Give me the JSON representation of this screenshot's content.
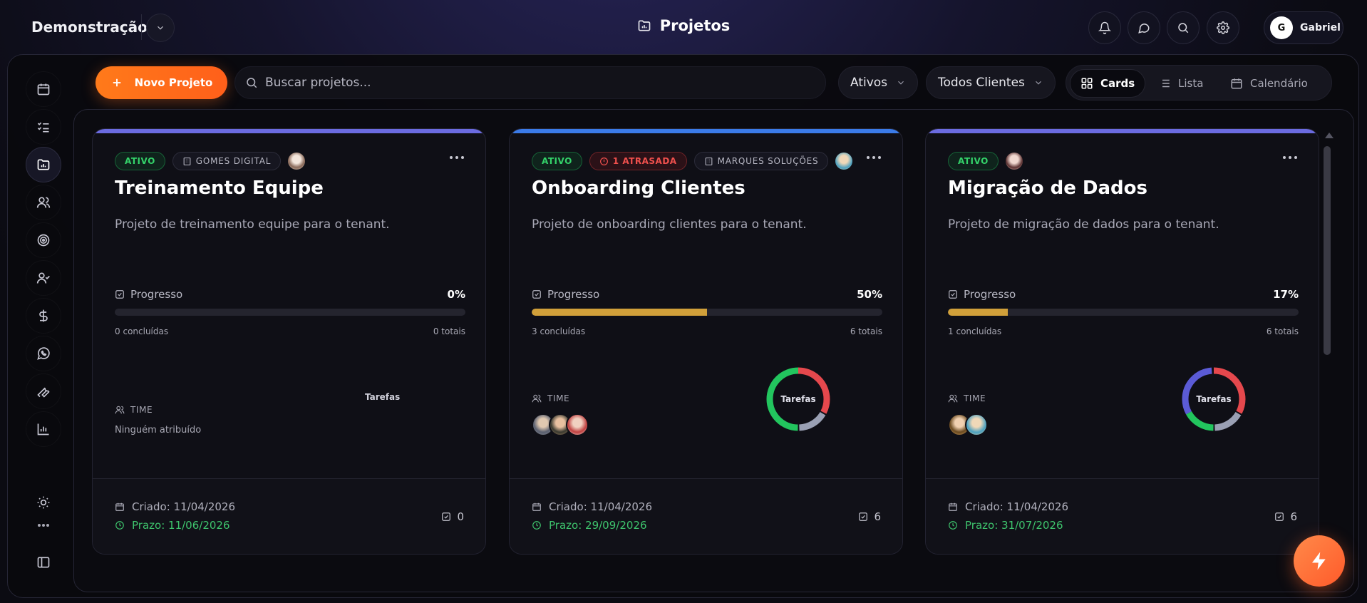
{
  "header": {
    "workspace": "Demonstração",
    "page_title": "Projetos",
    "user_initial": "G",
    "user_name": "Gabriel"
  },
  "toolbar": {
    "new_project_label": "Novo Projeto",
    "search_placeholder": "Buscar projetos...",
    "status_filter": "Ativos",
    "client_filter": "Todos Clientes",
    "views": [
      "Cards",
      "Lista",
      "Calendário"
    ],
    "active_view": "Cards"
  },
  "sidebar": {
    "icons": [
      "calendar-icon",
      "tasks-icon",
      "projects-icon",
      "users-icon",
      "target-icon",
      "user-check-icon",
      "dollar-icon",
      "whatsapp-icon",
      "wrench-icon",
      "chart-icon",
      "sun-icon",
      "more-icon",
      "panel-icon"
    ],
    "active": "projects-icon"
  },
  "colors": {
    "accent": "#ff6a1a",
    "progress_fill": "#d1a03a",
    "status_green": "#34d36a",
    "status_red": "#f0504d",
    "donut_red": "#e5484d",
    "donut_gray": "#9aa0b4",
    "donut_green": "#22c55e",
    "donut_blue": "#5b5bd6"
  },
  "labels": {
    "progress": "Progresso",
    "completed_suffix": "concluídas",
    "total_suffix": "totais",
    "team": "TIME",
    "tasks_chart": "Tarefas",
    "created_prefix": "Criado:",
    "due_prefix": "Prazo:"
  },
  "projects": [
    {
      "status": "ATIVO",
      "overdue": "",
      "client": "GOMES DIGITAL",
      "title": "Treinamento Equipe",
      "description": "Projeto de treinamento equipe para o tenant.",
      "progress_pct": "0%",
      "progress": 0,
      "completed": "0",
      "total": "0",
      "team_empty": "Ninguém atribuído",
      "created": "11/04/2026",
      "due": "11/06/2026",
      "task_count": "0"
    },
    {
      "status": "ATIVO",
      "overdue": "1 ATRASADA",
      "client": "MARQUES SOLUÇÕES",
      "title": "Onboarding Clientes",
      "description": "Projeto de onboarding clientes para o tenant.",
      "progress_pct": "50%",
      "progress": 0.5,
      "completed": "3",
      "total": "6",
      "team_members": 3,
      "created": "11/04/2026",
      "due": "29/09/2026",
      "task_count": "6"
    },
    {
      "status": "ATIVO",
      "overdue": "",
      "client": "",
      "title": "Migração de Dados",
      "description": "Projeto de migração de dados para o tenant.",
      "progress_pct": "17%",
      "progress": 0.17,
      "completed": "1",
      "total": "6",
      "team_members": 2,
      "created": "11/04/2026",
      "due": "31/07/2026",
      "task_count": "6"
    }
  ]
}
